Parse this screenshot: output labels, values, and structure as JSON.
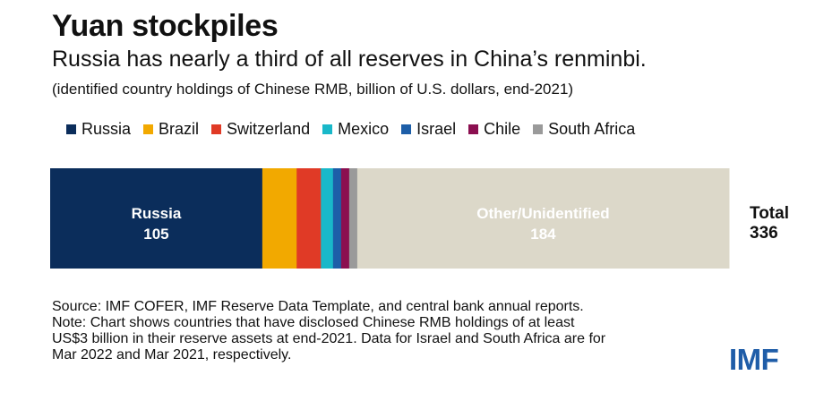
{
  "header": {
    "title": "Yuan stockpiles",
    "subtitle": "Russia has nearly a third of all reserves in China’s renminbi.",
    "units_note": "(identified country holdings of Chinese RMB, billion of U.S. dollars, end-2021)"
  },
  "chart_data": {
    "type": "bar",
    "orientation": "horizontal-stacked",
    "legend_position": "top",
    "grid": false,
    "series": [
      {
        "name": "Russia",
        "value": 105,
        "color": "#0b2d5b"
      },
      {
        "name": "Brazil",
        "value": 17,
        "color": "#f2a900"
      },
      {
        "name": "Switzerland",
        "value": 12,
        "color": "#e03a26"
      },
      {
        "name": "Mexico",
        "value": 6,
        "color": "#19b8c9"
      },
      {
        "name": "Israel",
        "value": 4,
        "color": "#1d5ea8"
      },
      {
        "name": "Chile",
        "value": 4,
        "color": "#8b0f50"
      },
      {
        "name": "South Africa",
        "value": 4,
        "color": "#9a9a9a"
      },
      {
        "name": "Other/Unidentified",
        "value": 184,
        "color": "#dcd8c9"
      }
    ],
    "data_labels": [
      {
        "series": "Russia",
        "label": "Russia",
        "value": "105",
        "color": "#ffffff"
      },
      {
        "series": "Other/Unidentified",
        "label": "Other/Unidentified",
        "value": "184",
        "color": "#ffffff"
      }
    ],
    "total": {
      "label": "Total",
      "value": "336"
    },
    "xlim": [
      0,
      336
    ]
  },
  "legend": {
    "items": [
      {
        "label": "Russia",
        "color": "#0b2d5b"
      },
      {
        "label": "Brazil",
        "color": "#f2a900"
      },
      {
        "label": "Switzerland",
        "color": "#e03a26"
      },
      {
        "label": "Mexico",
        "color": "#19b8c9"
      },
      {
        "label": "Israel",
        "color": "#1d5ea8"
      },
      {
        "label": "Chile",
        "color": "#8b0f50"
      },
      {
        "label": "South Africa",
        "color": "#9a9a9a"
      }
    ]
  },
  "footer": {
    "lines": [
      "Source: IMF COFER, IMF Reserve Data Template, and central bank annual reports.",
      "Note: Chart shows countries that have disclosed Chinese RMB holdings of at least",
      "US$3 billion in their reserve assets at end-2021. Data for Israel and South Africa are for",
      "Mar 2022 and Mar 2021, respectively."
    ],
    "logo_text": "IMF"
  }
}
